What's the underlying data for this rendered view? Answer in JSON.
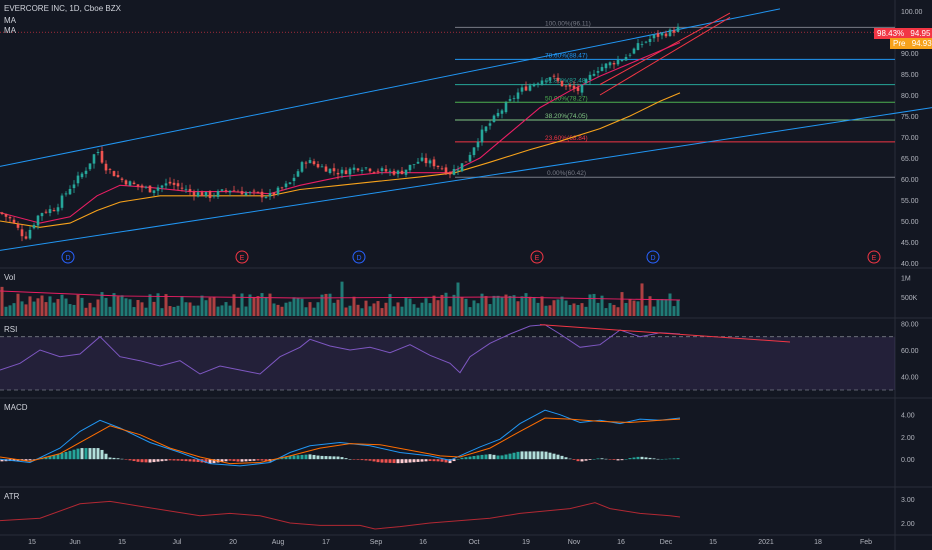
{
  "header": {
    "symbol_line": "EVERCORE INC, 1D, Cboe BZX",
    "ma_labels": [
      "MA",
      "MA"
    ]
  },
  "price_tags": {
    "last_pct": "98.43%",
    "last": "94.95",
    "pre_label": "Pre",
    "pre": "94.93",
    "last_color": "#f23645",
    "pre_color": "#f7a21b"
  },
  "panes": {
    "volume_title": "Vol",
    "rsi_title": "RSI",
    "macd_title": "MACD",
    "atr_title": "ATR"
  },
  "x_axis_labels": [
    "15",
    "Jun",
    "15",
    "Jul",
    "20",
    "Aug",
    "17",
    "Sep",
    "16",
    "Oct",
    "19",
    "Nov",
    "16",
    "Dec",
    "15",
    "2021",
    "18",
    "Feb"
  ],
  "event_markers": [
    {
      "letter": "D",
      "color": "#2962ff"
    },
    {
      "letter": "E",
      "color": "#f23645"
    },
    {
      "letter": "D",
      "color": "#2962ff"
    },
    {
      "letter": "E",
      "color": "#f23645"
    },
    {
      "letter": "D",
      "color": "#2962ff"
    },
    {
      "letter": "E",
      "color": "#f23645"
    }
  ],
  "fib_levels": [
    {
      "label": "100.00%(96.11)",
      "price": 96.11,
      "color": "#787b86"
    },
    {
      "label": "78.60%(88.47)",
      "price": 88.47,
      "color": "#2196f3"
    },
    {
      "label": "61.80%(82.48)",
      "price": 82.48,
      "color": "#26a69a"
    },
    {
      "label": "50.00%(78.27)",
      "price": 78.27,
      "color": "#4caf50"
    },
    {
      "label": "38.20%(74.05)",
      "price": 74.05,
      "color": "#81c784"
    },
    {
      "label": "23.60%(68.84)",
      "price": 68.84,
      "color": "#f23645"
    },
    {
      "label": "0.00%(60.42)",
      "price": 60.42,
      "color": "#787b86"
    }
  ],
  "chart_data": [
    {
      "type": "line",
      "name": "price",
      "yticks": [
        "100.00",
        "95.00",
        "90.00",
        "85.00",
        "80.00",
        "75.00",
        "70.00",
        "65.00",
        "60.00",
        "55.00",
        "50.00",
        "45.00",
        "40.00"
      ],
      "ylim": [
        40,
        100
      ],
      "close_points": [
        [
          0,
          52
        ],
        [
          10,
          50.5
        ],
        [
          25,
          46
        ],
        [
          40,
          52
        ],
        [
          55,
          53
        ],
        [
          70,
          58
        ],
        [
          85,
          62
        ],
        [
          97,
          67
        ],
        [
          105,
          63
        ],
        [
          120,
          60
        ],
        [
          135,
          58.5
        ],
        [
          150,
          57.5
        ],
        [
          170,
          59
        ],
        [
          190,
          57
        ],
        [
          210,
          56
        ],
        [
          230,
          57.5
        ],
        [
          250,
          56.5
        ],
        [
          270,
          56
        ],
        [
          290,
          59
        ],
        [
          305,
          64.5
        ],
        [
          320,
          63
        ],
        [
          340,
          61.5
        ],
        [
          360,
          63
        ],
        [
          380,
          62
        ],
        [
          400,
          61.5
        ],
        [
          420,
          64.5
        ],
        [
          435,
          63.5
        ],
        [
          450,
          61.5
        ],
        [
          465,
          64
        ],
        [
          480,
          70.5
        ],
        [
          500,
          76
        ],
        [
          520,
          81
        ],
        [
          535,
          83
        ],
        [
          550,
          84.5
        ],
        [
          565,
          82
        ],
        [
          580,
          81
        ],
        [
          595,
          86
        ],
        [
          610,
          87.5
        ],
        [
          625,
          89
        ],
        [
          640,
          92
        ],
        [
          655,
          94
        ],
        [
          670,
          95
        ],
        [
          680,
          96
        ]
      ],
      "ma_fast_points": [
        [
          0,
          52
        ],
        [
          40,
          49.5
        ],
        [
          70,
          51
        ],
        [
          97,
          56
        ],
        [
          120,
          58.5
        ],
        [
          150,
          58
        ],
        [
          190,
          57
        ],
        [
          230,
          57
        ],
        [
          270,
          56.5
        ],
        [
          300,
          58.5
        ],
        [
          340,
          60.5
        ],
        [
          380,
          61.5
        ],
        [
          420,
          61.5
        ],
        [
          450,
          61.5
        ],
        [
          480,
          65
        ],
        [
          510,
          71
        ],
        [
          540,
          77
        ],
        [
          570,
          81
        ],
        [
          600,
          84.5
        ],
        [
          630,
          87.5
        ],
        [
          660,
          90.5
        ],
        [
          680,
          92.5
        ]
      ],
      "ma_slow_points": [
        [
          0,
          50
        ],
        [
          40,
          48.5
        ],
        [
          70,
          49.5
        ],
        [
          97,
          52.5
        ],
        [
          120,
          54.5
        ],
        [
          160,
          56
        ],
        [
          200,
          56
        ],
        [
          240,
          56
        ],
        [
          270,
          56
        ],
        [
          300,
          57.5
        ],
        [
          340,
          58.5
        ],
        [
          380,
          59.5
        ],
        [
          420,
          60.5
        ],
        [
          455,
          61.5
        ],
        [
          490,
          64
        ],
        [
          530,
          67
        ],
        [
          560,
          69
        ],
        [
          600,
          72
        ],
        [
          630,
          75
        ],
        [
          660,
          78.5
        ],
        [
          680,
          80.5
        ]
      ],
      "channel_upper": [
        [
          0,
          63
        ],
        [
          780,
          100.5
        ]
      ],
      "channel_lower": [
        [
          0,
          43
        ],
        [
          932,
          77
        ]
      ],
      "wedge_upper": [
        [
          600,
          82.5
        ],
        [
          730,
          99.5
        ]
      ],
      "wedge_lower": [
        [
          600,
          80
        ],
        [
          730,
          98.5
        ]
      ]
    },
    {
      "type": "bar",
      "name": "volume",
      "yticks": [
        "1M",
        "500K"
      ],
      "ylim": [
        0,
        1200000
      ]
    },
    {
      "type": "line",
      "name": "RSI",
      "yticks": [
        "80.00",
        "60.00",
        "40.00"
      ],
      "ylim": [
        24,
        84
      ],
      "bands": [
        70,
        30
      ],
      "points": [
        [
          0,
          45
        ],
        [
          20,
          50
        ],
        [
          40,
          60
        ],
        [
          60,
          55
        ],
        [
          80,
          57
        ],
        [
          100,
          70
        ],
        [
          120,
          55
        ],
        [
          140,
          52
        ],
        [
          160,
          48
        ],
        [
          180,
          52
        ],
        [
          200,
          42
        ],
        [
          220,
          48
        ],
        [
          240,
          45
        ],
        [
          260,
          42
        ],
        [
          280,
          55
        ],
        [
          300,
          62
        ],
        [
          310,
          68
        ],
        [
          330,
          63
        ],
        [
          350,
          60
        ],
        [
          370,
          62
        ],
        [
          390,
          58
        ],
        [
          410,
          64
        ],
        [
          430,
          56
        ],
        [
          450,
          50
        ],
        [
          460,
          43
        ],
        [
          470,
          55
        ],
        [
          490,
          65
        ],
        [
          510,
          72
        ],
        [
          530,
          78
        ],
        [
          545,
          79
        ],
        [
          560,
          72
        ],
        [
          580,
          62
        ],
        [
          600,
          64
        ],
        [
          620,
          75
        ],
        [
          640,
          70
        ],
        [
          660,
          73
        ],
        [
          680,
          72
        ]
      ],
      "trend_line": [
        [
          540,
          79
        ],
        [
          790,
          66
        ]
      ]
    },
    {
      "type": "line",
      "name": "MACD",
      "yticks": [
        "4.00",
        "2.00",
        "0.00"
      ],
      "ylim": [
        -2.5,
        5.5
      ],
      "macd_points": [
        [
          0,
          0
        ],
        [
          30,
          -0.3
        ],
        [
          60,
          1
        ],
        [
          80,
          2.5
        ],
        [
          100,
          3.5
        ],
        [
          120,
          2.8
        ],
        [
          150,
          1.5
        ],
        [
          180,
          0.6
        ],
        [
          210,
          -0.4
        ],
        [
          240,
          -0.6
        ],
        [
          270,
          -0.3
        ],
        [
          290,
          0.6
        ],
        [
          310,
          1.2
        ],
        [
          340,
          1.5
        ],
        [
          370,
          1.2
        ],
        [
          400,
          0.6
        ],
        [
          430,
          0.3
        ],
        [
          450,
          -0.1
        ],
        [
          465,
          0.5
        ],
        [
          480,
          1.1
        ],
        [
          500,
          1.8
        ],
        [
          520,
          3.2
        ],
        [
          545,
          4.4
        ],
        [
          560,
          4
        ],
        [
          580,
          3.3
        ],
        [
          600,
          3.5
        ],
        [
          620,
          3.2
        ],
        [
          640,
          3.6
        ],
        [
          660,
          3.5
        ],
        [
          680,
          3.7
        ]
      ],
      "signal_points": [
        [
          0,
          0.2
        ],
        [
          30,
          -0.2
        ],
        [
          60,
          0.5
        ],
        [
          90,
          2
        ],
        [
          110,
          3
        ],
        [
          140,
          2.2
        ],
        [
          170,
          1
        ],
        [
          200,
          0.2
        ],
        [
          230,
          -0.4
        ],
        [
          260,
          -0.3
        ],
        [
          290,
          0.3
        ],
        [
          320,
          1
        ],
        [
          350,
          1.4
        ],
        [
          380,
          1.3
        ],
        [
          410,
          0.8
        ],
        [
          440,
          0.3
        ],
        [
          460,
          0.2
        ],
        [
          490,
          1
        ],
        [
          520,
          2.5
        ],
        [
          545,
          3.7
        ],
        [
          570,
          3.6
        ],
        [
          600,
          3.4
        ],
        [
          630,
          3.3
        ],
        [
          660,
          3.5
        ],
        [
          680,
          3.6
        ]
      ]
    },
    {
      "type": "line",
      "name": "ATR",
      "yticks": [
        "3.00",
        "2.00"
      ],
      "ylim": [
        1.5,
        3.5
      ],
      "points": [
        [
          0,
          2.1
        ],
        [
          40,
          2.2
        ],
        [
          80,
          2.8
        ],
        [
          110,
          2.9
        ],
        [
          140,
          2.7
        ],
        [
          170,
          2.5
        ],
        [
          200,
          2.3
        ],
        [
          230,
          2.4
        ],
        [
          260,
          2.3
        ],
        [
          290,
          2.0
        ],
        [
          320,
          1.9
        ],
        [
          360,
          1.9
        ],
        [
          375,
          1.75
        ],
        [
          400,
          1.85
        ],
        [
          430,
          2.0
        ],
        [
          460,
          2.1
        ],
        [
          490,
          2.2
        ],
        [
          520,
          2.4
        ],
        [
          545,
          2.5
        ],
        [
          570,
          2.6
        ],
        [
          595,
          2.85
        ],
        [
          610,
          2.6
        ],
        [
          640,
          2.4
        ],
        [
          670,
          2.3
        ],
        [
          680,
          2.25
        ]
      ]
    }
  ]
}
